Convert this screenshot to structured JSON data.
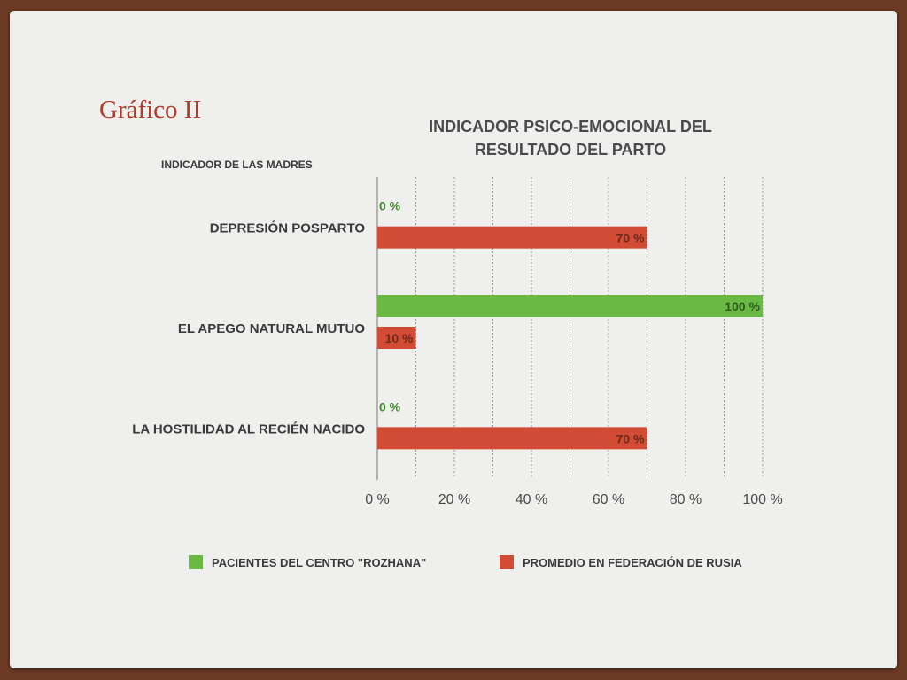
{
  "slide": {
    "title": "Gráfico II"
  },
  "chart_data": {
    "type": "bar",
    "orientation": "horizontal",
    "title": "INDICADOR PSICO-EMOCIONAL DEL RESULTADO DEL PARTO",
    "title_lines": [
      "INDICADOR PSICO-EMOCIONAL DEL",
      "RESULTADO DEL PARTO"
    ],
    "category_axis_title": "INDICADOR DE LAS MADRES",
    "categories": [
      "DEPRESIÓN POSPARTO",
      "EL APEGO NATURAL MUTUO",
      "LA HOSTILIDAD AL RECIÉN NACIDO"
    ],
    "series": [
      {
        "name": "PACIENTES DEL CENTRO \"ROZHANA\"",
        "values": [
          0,
          100,
          0
        ],
        "labels": [
          "0 %",
          "100 %",
          "0 %"
        ],
        "color": "#6ab945"
      },
      {
        "name": "PROMEDIO EN FEDERACIÓN DE RUSIA",
        "values": [
          70,
          10,
          70
        ],
        "labels": [
          "70 %",
          "10 %",
          "70 %"
        ],
        "color": "#d24b34"
      }
    ],
    "xlim": [
      0,
      100
    ],
    "x_ticks": [
      0,
      20,
      40,
      60,
      80,
      100
    ],
    "x_tick_labels": [
      "0 %",
      "20 %",
      "40 %",
      "60 %",
      "80 %",
      "100 %"
    ],
    "grid": "vertical dotted",
    "legend": "bottom"
  }
}
